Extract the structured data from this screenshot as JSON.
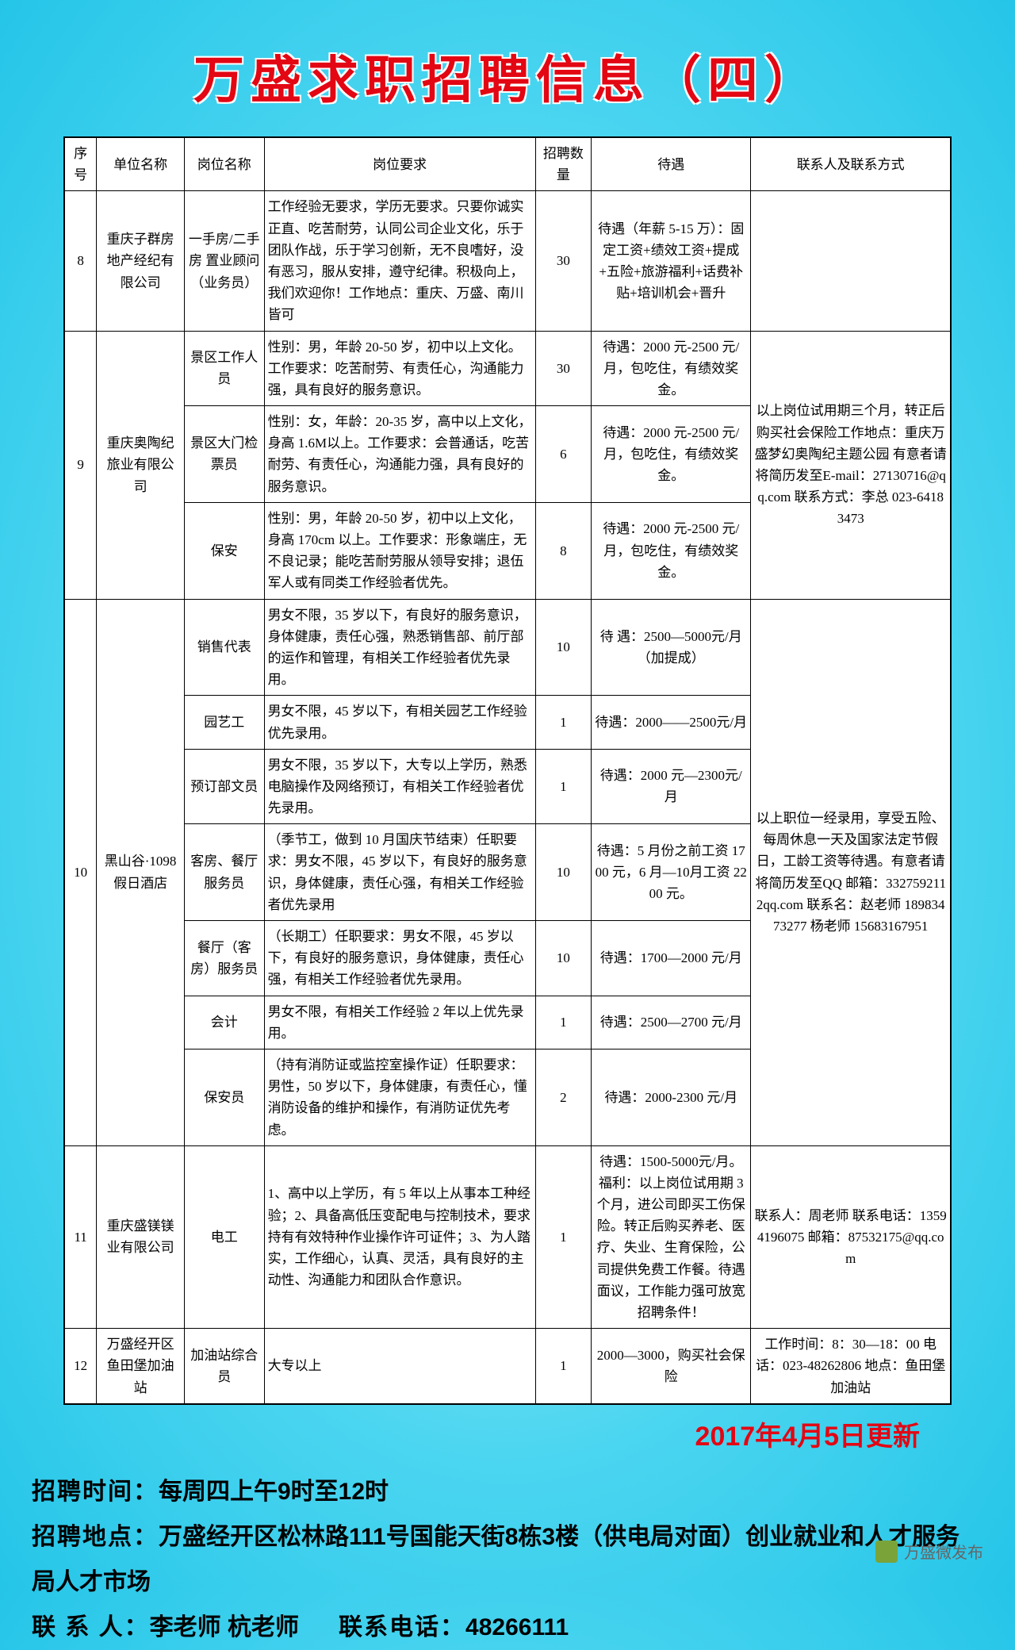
{
  "title": "万盛求职招聘信息（四）",
  "headers": [
    "序号",
    "单位名称",
    "岗位名称",
    "岗位要求",
    "招聘数量",
    "待遇",
    "联系人及联系方式"
  ],
  "rows": [
    {
      "seq": "8",
      "company": "重庆子群房地产经纪有限公司",
      "positions": [
        {
          "name": "一手房/二手房 置业顾问（业务员）",
          "req": "工作经验无要求，学历无要求。只要你诚实正直、吃苦耐劳，认同公司企业文化，乐于团队作战，乐于学习创新，无不良嗜好，没有恶习，服从安排，遵守纪律。积极向上，我们欢迎你！工作地点：重庆、万盛、南川皆可",
          "num": "30",
          "sal": "待遇（年薪 5-15 万）：固定工资+绩效工资+提成+五险+旅游福利+话费补贴+培训机会+晋升"
        }
      ],
      "contact": ""
    },
    {
      "seq": "9",
      "company": "重庆奥陶纪旅业有限公司",
      "positions": [
        {
          "name": "景区工作人员",
          "req": "性别：男，年龄 20-50 岁，初中以上文化。工作要求：吃苦耐劳、有责任心，沟通能力强，具有良好的服务意识。",
          "num": "30",
          "sal": "待遇：2000 元-2500 元/月，包吃住，有绩效奖金。"
        },
        {
          "name": "景区大门检票员",
          "req": "性别：女，年龄：20-35 岁，高中以上文化，身高 1.6M以上。工作要求：会普通话，吃苦耐劳、有责任心，沟通能力强，具有良好的服务意识。",
          "num": "6",
          "sal": "待遇：2000 元-2500 元/月，包吃住，有绩效奖金。"
        },
        {
          "name": "保安",
          "req": "性别：男，年龄 20-50 岁，初中以上文化，身高 170cm 以上。工作要求：形象端庄，无不良记录；能吃苦耐劳服从领导安排；退伍军人或有同类工作经验者优先。",
          "num": "8",
          "sal": "待遇：2000 元-2500 元/月，包吃住，有绩效奖金。"
        }
      ],
      "contact": "以上岗位试用期三个月，转正后购买社会保险工作地点：重庆万盛梦幻奥陶纪主题公园 有意者请将简历发至E-mail：27130716@qq.com 联系方式：李总 023-64183473"
    },
    {
      "seq": "10",
      "company": "黑山谷·1098假日酒店",
      "positions": [
        {
          "name": "销售代表",
          "req": "男女不限，35 岁以下，有良好的服务意识，身体健康，责任心强，熟悉销售部、前厅部的运作和管理，有相关工作经验者优先录用。",
          "num": "10",
          "sal": "待 遇：2500—5000元/月（加提成）"
        },
        {
          "name": "园艺工",
          "req": "男女不限，45 岁以下，有相关园艺工作经验优先录用。",
          "num": "1",
          "sal": "待遇：2000——2500元/月"
        },
        {
          "name": "预订部文员",
          "req": "男女不限，35 岁以下，大专以上学历，熟悉电脑操作及网络预订，有相关工作经验者优先录用。",
          "num": "1",
          "sal": "待遇：2000 元—2300元/月"
        },
        {
          "name": "客房、餐厅服务员",
          "req": "（季节工，做到 10 月国庆节结束）任职要求：男女不限，45 岁以下，有良好的服务意识，身体健康，责任心强，有相关工作经验者优先录用",
          "num": "10",
          "sal": "待遇：5 月份之前工资 1700 元，6 月—10月工资 2200 元。"
        },
        {
          "name": "餐厅（客房）服务员",
          "req": "（长期工）任职要求：男女不限，45 岁以下，有良好的服务意识，身体健康，责任心强，有相关工作经验者优先录用。",
          "num": "10",
          "sal": "待遇：1700—2000 元/月"
        },
        {
          "name": "会计",
          "req": "男女不限，有相关工作经验 2 年以上优先录用。",
          "num": "1",
          "sal": "待遇：2500—2700 元/月"
        },
        {
          "name": "保安员",
          "req": "（持有消防证或监控室操作证）任职要求：男性，50 岁以下，身体健康，有责任心，懂消防设备的维护和操作，有消防证优先考虑。",
          "num": "2",
          "sal": "待遇：2000-2300 元/月"
        }
      ],
      "contact": "以上职位一经录用，享受五险、每周休息一天及国家法定节假日，工龄工资等待遇。有意者请将简历发至QQ 邮箱：3327592112qq.com 联系名：赵老师 18983473277 杨老师 15683167951"
    },
    {
      "seq": "11",
      "company": "重庆盛镁镁业有限公司",
      "positions": [
        {
          "name": "电工",
          "req": "1、高中以上学历，有 5 年以上从事本工种经验；2、具备高低压变配电与控制技术，要求持有有效特种作业操作许可证件；3、为人踏实，工作细心，认真、灵活，具有良好的主动性、沟通能力和团队合作意识。",
          "num": "1",
          "sal": "待遇：1500-5000元/月。福利：以上岗位试用期 3 个月，进公司即买工伤保险。转正后购买养老、医疗、失业、生育保险，公司提供免费工作餐。待遇面议，工作能力强可放宽招聘条件！"
        }
      ],
      "contact": "联系人：周老师 联系电话：13594196075 邮箱：87532175@qq.com"
    },
    {
      "seq": "12",
      "company": "万盛经开区鱼田堡加油站",
      "positions": [
        {
          "name": "加油站综合员",
          "req": "大专以上",
          "num": "1",
          "sal": "2000—3000，购买社会保险"
        }
      ],
      "contact": "工作时间：8：30—18：00 电话：023-48262806 地点：鱼田堡加油站"
    }
  ],
  "update": "2017年4月5日更新",
  "footer": {
    "time_label": "招聘时间：",
    "time_value": "每周四上午9时至12时",
    "addr_label": "招聘地点：",
    "addr_value": "万盛经开区松林路111号国能天街8栋3楼（供电局对面）创业就业和人才服务局人才市场",
    "contact_label": "联 系 人：",
    "contact_value": "李老师 杭老师",
    "phone_label": "联系电话：",
    "phone_value": "48266111"
  },
  "watermark": "万盛微发布"
}
